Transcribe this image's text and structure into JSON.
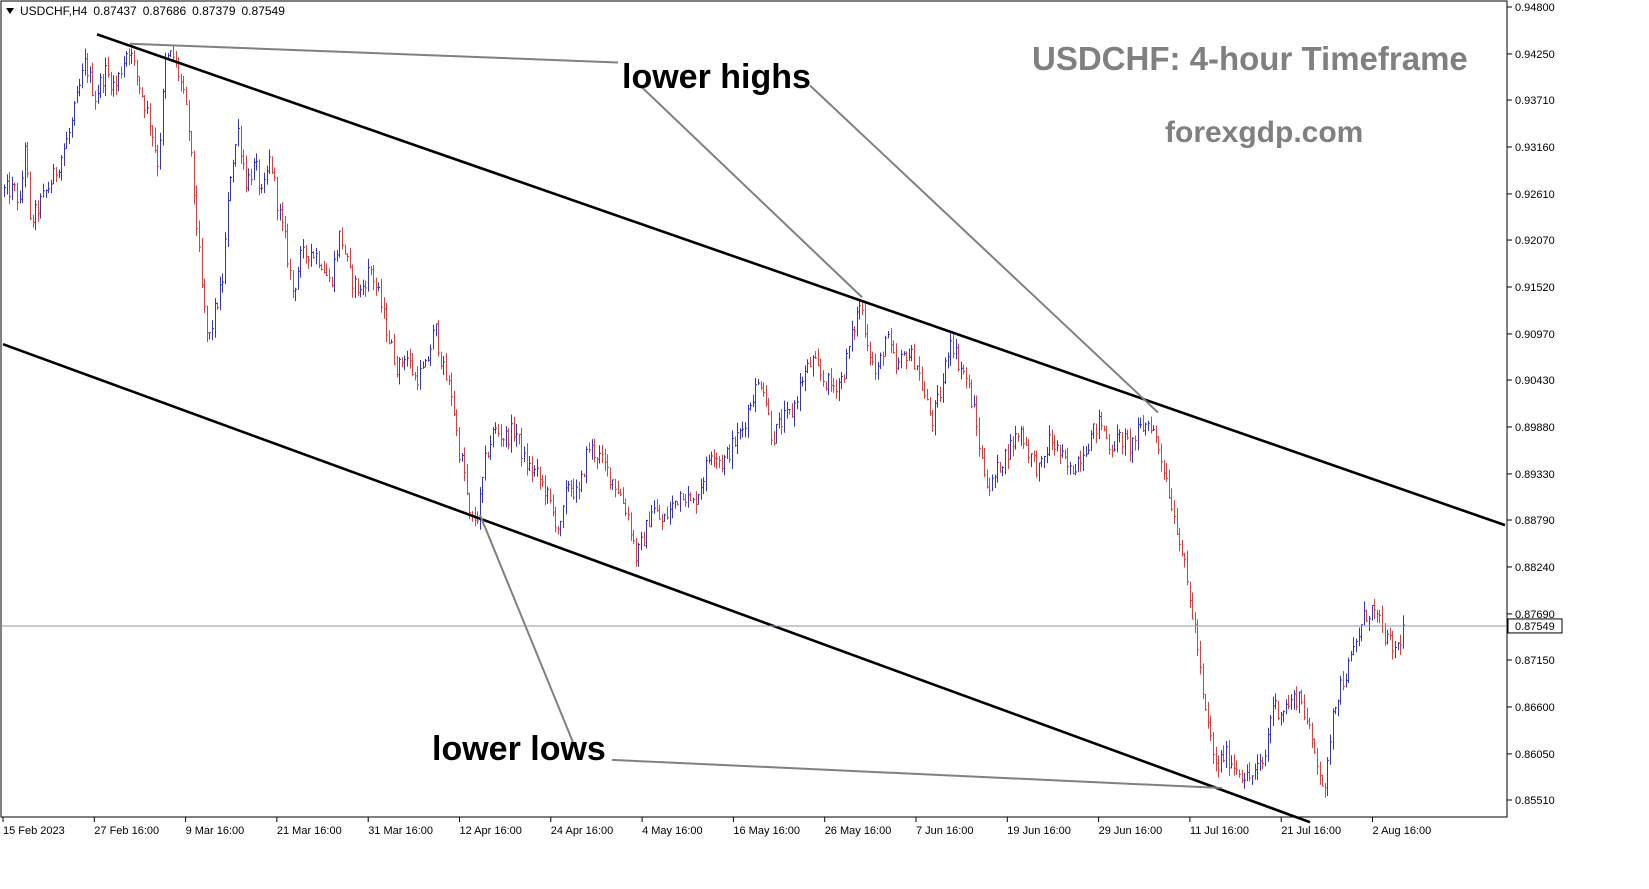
{
  "header": {
    "symbol": "USDCHF,H4",
    "open": "0.87437",
    "high": "0.87686",
    "low": "0.87379",
    "close": "0.87549"
  },
  "title": "USDCHF: 4-hour Timeframe",
  "site": "forexgdp.com",
  "annotations": {
    "lower_highs": "lower highs",
    "lower_lows": "lower lows"
  },
  "colors": {
    "bull": "#3333cc",
    "bear": "#e83a3a",
    "trendline": "#000000",
    "pointer": "#808080",
    "grid_text": "#000000"
  },
  "chart_data": {
    "type": "candlestick",
    "symbol": "USDCHF",
    "timeframe": "H4",
    "ylim": [
      0.8525,
      0.948
    ],
    "y_ticks": [
      "0.94800",
      "0.94250",
      "0.93710",
      "0.93160",
      "0.92610",
      "0.92070",
      "0.91520",
      "0.90970",
      "0.90430",
      "0.89880",
      "0.89330",
      "0.88790",
      "0.88240",
      "0.87690",
      "0.87150",
      "0.86600",
      "0.86050",
      "0.85510"
    ],
    "x_ticks": [
      "15 Feb 2023",
      "27 Feb 16:00",
      "9 Mar 16:00",
      "21 Mar 16:00",
      "31 Mar 16:00",
      "12 Apr 16:00",
      "24 Apr 16:00",
      "4 May 16:00",
      "16 May 16:00",
      "26 May 16:00",
      "7 Jun 16:00",
      "19 Jun 16:00",
      "29 Jun 16:00",
      "11 Jul 16:00",
      "21 Jul 16:00",
      "2 Aug 16:00"
    ],
    "current_price": "0.87549",
    "current_price_value": 0.87549,
    "price_path": [
      [
        15,
        0.9265
      ],
      [
        20,
        0.9245
      ],
      [
        25,
        0.9325
      ],
      [
        30,
        0.9225
      ],
      [
        40,
        0.925
      ],
      [
        55,
        0.9285
      ],
      [
        70,
        0.9335
      ],
      [
        85,
        0.9415
      ],
      [
        95,
        0.9375
      ],
      [
        105,
        0.9405
      ],
      [
        115,
        0.9385
      ],
      [
        128,
        0.9435
      ],
      [
        140,
        0.9385
      ],
      [
        150,
        0.9345
      ],
      [
        158,
        0.9295
      ],
      [
        165,
        0.9415
      ],
      [
        172,
        0.9425
      ],
      [
        180,
        0.9395
      ],
      [
        188,
        0.9345
      ],
      [
        195,
        0.9245
      ],
      [
        202,
        0.9145
      ],
      [
        208,
        0.9085
      ],
      [
        215,
        0.9125
      ],
      [
        222,
        0.9155
      ],
      [
        230,
        0.9285
      ],
      [
        238,
        0.9335
      ],
      [
        246,
        0.9275
      ],
      [
        255,
        0.9295
      ],
      [
        262,
        0.9255
      ],
      [
        270,
        0.9305
      ],
      [
        278,
        0.9245
      ],
      [
        285,
        0.9205
      ],
      [
        293,
        0.9145
      ],
      [
        300,
        0.9185
      ],
      [
        310,
        0.9195
      ],
      [
        320,
        0.9185
      ],
      [
        330,
        0.9155
      ],
      [
        340,
        0.9215
      ],
      [
        350,
        0.9165
      ],
      [
        360,
        0.9145
      ],
      [
        370,
        0.9175
      ],
      [
        380,
        0.9135
      ],
      [
        390,
        0.9085
      ],
      [
        398,
        0.9055
      ],
      [
        405,
        0.9075
      ],
      [
        415,
        0.9045
      ],
      [
        425,
        0.9055
      ],
      [
        435,
        0.9105
      ],
      [
        443,
        0.9055
      ],
      [
        452,
        0.9025
      ],
      [
        458,
        0.8965
      ],
      [
        464,
        0.8935
      ],
      [
        470,
        0.8875
      ],
      [
        478,
        0.8885
      ],
      [
        486,
        0.8955
      ],
      [
        494,
        0.8985
      ],
      [
        505,
        0.8975
      ],
      [
        515,
        0.8985
      ],
      [
        525,
        0.8945
      ],
      [
        535,
        0.8935
      ],
      [
        545,
        0.8915
      ],
      [
        553,
        0.8885
      ],
      [
        560,
        0.8865
      ],
      [
        568,
        0.8925
      ],
      [
        578,
        0.8905
      ],
      [
        588,
        0.8965
      ],
      [
        598,
        0.8955
      ],
      [
        608,
        0.8935
      ],
      [
        618,
        0.8915
      ],
      [
        628,
        0.8885
      ],
      [
        636,
        0.8835
      ],
      [
        643,
        0.8855
      ],
      [
        652,
        0.8895
      ],
      [
        662,
        0.8875
      ],
      [
        672,
        0.8895
      ],
      [
        682,
        0.8915
      ],
      [
        692,
        0.8895
      ],
      [
        702,
        0.8925
      ],
      [
        712,
        0.8965
      ],
      [
        722,
        0.8945
      ],
      [
        732,
        0.8965
      ],
      [
        742,
        0.8985
      ],
      [
        752,
        0.9025
      ],
      [
        762,
        0.9045
      ],
      [
        772,
        0.8975
      ],
      [
        782,
        0.8995
      ],
      [
        792,
        0.9005
      ],
      [
        802,
        0.9045
      ],
      [
        812,
        0.9065
      ],
      [
        822,
        0.9045
      ],
      [
        832,
        0.9035
      ],
      [
        842,
        0.9045
      ],
      [
        852,
        0.9095
      ],
      [
        860,
        0.9135
      ],
      [
        868,
        0.9085
      ],
      [
        876,
        0.9045
      ],
      [
        886,
        0.9095
      ],
      [
        896,
        0.9055
      ],
      [
        906,
        0.9075
      ],
      [
        916,
        0.9065
      ],
      [
        924,
        0.9025
      ],
      [
        932,
        0.8995
      ],
      [
        942,
        0.9035
      ],
      [
        950,
        0.9095
      ],
      [
        958,
        0.9065
      ],
      [
        966,
        0.9045
      ],
      [
        974,
        0.9005
      ],
      [
        982,
        0.8945
      ],
      [
        990,
        0.8915
      ],
      [
        1000,
        0.8945
      ],
      [
        1010,
        0.8965
      ],
      [
        1020,
        0.8985
      ],
      [
        1030,
        0.8955
      ],
      [
        1040,
        0.8935
      ],
      [
        1050,
        0.8975
      ],
      [
        1060,
        0.8955
      ],
      [
        1070,
        0.8935
      ],
      [
        1080,
        0.8955
      ],
      [
        1090,
        0.8975
      ],
      [
        1100,
        0.8995
      ],
      [
        1110,
        0.8965
      ],
      [
        1120,
        0.8975
      ],
      [
        1130,
        0.8965
      ],
      [
        1140,
        0.8985
      ],
      [
        1150,
        0.8995
      ],
      [
        1158,
        0.8965
      ],
      [
        1165,
        0.8935
      ],
      [
        1172,
        0.8895
      ],
      [
        1180,
        0.8855
      ],
      [
        1188,
        0.8795
      ],
      [
        1196,
        0.8745
      ],
      [
        1203,
        0.8665
      ],
      [
        1210,
        0.8625
      ],
      [
        1216,
        0.8585
      ],
      [
        1224,
        0.8605
      ],
      [
        1232,
        0.8595
      ],
      [
        1240,
        0.8585
      ],
      [
        1248,
        0.8575
      ],
      [
        1256,
        0.8585
      ],
      [
        1264,
        0.8595
      ],
      [
        1272,
        0.8665
      ],
      [
        1280,
        0.8655
      ],
      [
        1290,
        0.8665
      ],
      [
        1300,
        0.8675
      ],
      [
        1310,
        0.8625
      ],
      [
        1318,
        0.8595
      ],
      [
        1325,
        0.8555
      ],
      [
        1332,
        0.8655
      ],
      [
        1340,
        0.8685
      ],
      [
        1348,
        0.8705
      ],
      [
        1356,
        0.8735
      ],
      [
        1364,
        0.8765
      ],
      [
        1372,
        0.8775
      ],
      [
        1380,
        0.8755
      ],
      [
        1388,
        0.8735
      ],
      [
        1396,
        0.8725
      ],
      [
        1404,
        0.8755
      ]
    ],
    "trendlines": [
      {
        "name": "upper-channel",
        "from": [
          97,
          0.9448
        ],
        "to": [
          1505,
          0.8873
        ]
      },
      {
        "name": "lower-channel",
        "from": [
          3,
          0.9085
        ],
        "to": [
          1310,
          0.8525
        ]
      }
    ],
    "pointers": [
      {
        "name": "lower-highs-pointer-1",
        "from": [
          130,
          0.9437
        ],
        "to": [
          618,
          0.9415
        ]
      },
      {
        "name": "lower-highs-pointer-2",
        "from": [
          640,
          0.9388
        ],
        "to": [
          862,
          0.914
        ]
      },
      {
        "name": "lower-highs-pointer-3",
        "from": [
          810,
          0.9388
        ],
        "to": [
          1158,
          0.9005
        ]
      },
      {
        "name": "lower-lows-pointer-1",
        "from": [
          480,
          0.8885
        ],
        "to": [
          576,
          0.861
        ]
      },
      {
        "name": "lower-lows-pointer-2",
        "from": [
          612,
          0.8598
        ],
        "to": [
          1222,
          0.8565
        ]
      }
    ]
  }
}
